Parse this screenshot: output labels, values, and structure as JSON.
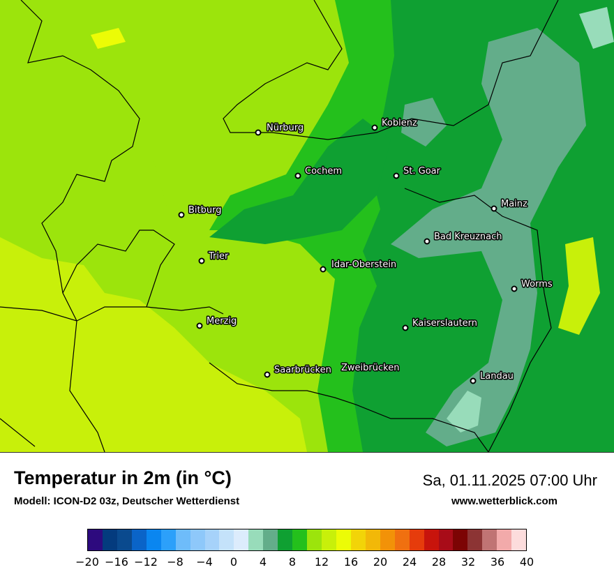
{
  "header": {
    "title": "Temperatur in 2m (in °C)",
    "model": "Modell: ICON-D2 03z, Deutscher Wetterdienst",
    "datetime": "Sa, 01.11.2025 07:00 Uhr",
    "website": "www.wetterblick.com"
  },
  "map": {
    "colors": {
      "t0_4": "#98dcba",
      "t4_6": "#63ad8a",
      "t6_8": "#0fa032",
      "t8_10": "#24c01c",
      "t10_12": "#9ce40c",
      "t12_14": "#c8f00a",
      "t14_16": "#ecfc06",
      "border": "#000000"
    },
    "cities": [
      {
        "name": "Nürburg"
      },
      {
        "name": "Koblenz"
      },
      {
        "name": "Cochem"
      },
      {
        "name": "St. Goar"
      },
      {
        "name": "Mainz"
      },
      {
        "name": "Bitburg"
      },
      {
        "name": "Bad Kreuznach"
      },
      {
        "name": "Trier"
      },
      {
        "name": "Idar-Oberstein"
      },
      {
        "name": "Worms"
      },
      {
        "name": "Merzig"
      },
      {
        "name": "Kaiserslautern"
      },
      {
        "name": "Saarbrücken"
      },
      {
        "name": "Zweibrücken"
      },
      {
        "name": "Landau"
      }
    ]
  },
  "legend": {
    "colors": [
      "#2d0a7e",
      "#043b7e",
      "#0a4a8e",
      "#0a64c8",
      "#0a86f0",
      "#2ca0fa",
      "#6ebcfa",
      "#8ec8fa",
      "#a6d2fa",
      "#c4e2fa",
      "#dcecfc",
      "#98dcba",
      "#63ad8a",
      "#0fa032",
      "#24c01c",
      "#9ce40c",
      "#c8f00a",
      "#ecfc06",
      "#f2d408",
      "#f2b808",
      "#f29208",
      "#f07010",
      "#e63c0c",
      "#c8140c",
      "#a80c18",
      "#7c0404",
      "#8c3434",
      "#c07474",
      "#f2aaaa",
      "#fcdcdc"
    ],
    "ticks": [
      "−20",
      "−16",
      "−12",
      "−8",
      "−4",
      "0",
      "4",
      "8",
      "12",
      "16",
      "20",
      "24",
      "28",
      "32",
      "36",
      "40"
    ]
  }
}
